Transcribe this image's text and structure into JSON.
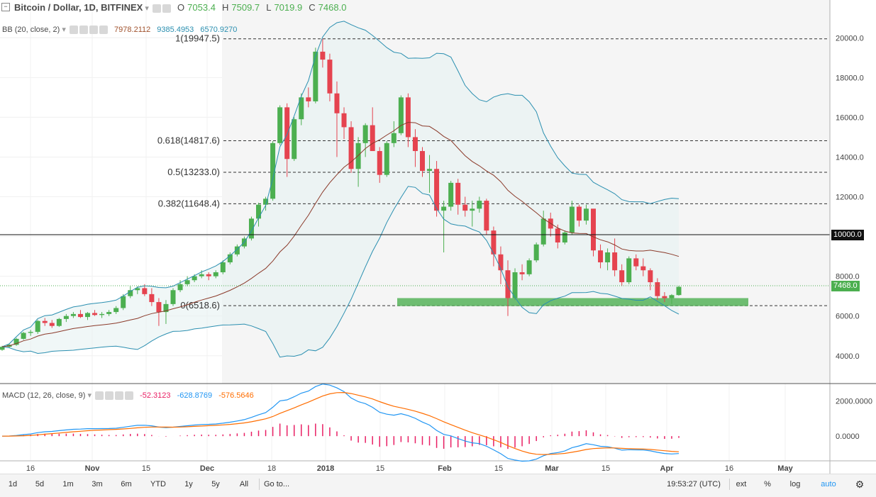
{
  "legend": {
    "symbol": "Bitcoin / Dollar, 1D, BITFINEX",
    "open_k": "O",
    "open": "7053.4",
    "high_k": "H",
    "high": "7509.7",
    "low_k": "L",
    "low": "7019.9",
    "close_k": "C",
    "close": "7468.0"
  },
  "bb": {
    "label": "BB (20, close, 2)",
    "basis": "7978.2112",
    "upper": "9385.4953",
    "lower": "6570.9270"
  },
  "macd": {
    "label": "MACD (12, 26, close, 9)",
    "hist": "-52.3123",
    "macd": "-628.8769",
    "signal": "-576.5646"
  },
  "price_axis": [
    "20000.0",
    "18000.0",
    "16000.0",
    "14000.0",
    "12000.0",
    "8000.0",
    "6000.0",
    "4000.0"
  ],
  "macd_axis": [
    "2000.0000",
    "0.0000"
  ],
  "level_10000": "10000.0",
  "last_price": "7468.0",
  "fib": [
    {
      "label": "1(19947.5)",
      "price": 19947.5
    },
    {
      "label": "0.618(14817.6)",
      "price": 14817.6
    },
    {
      "label": "0.5(13233.0)",
      "price": 13233.0
    },
    {
      "label": "0.382(11648.4)",
      "price": 11648.4
    },
    {
      "label": "0(6518.6)",
      "price": 6518.6
    }
  ],
  "time_axis": [
    "16",
    "Nov",
    "15",
    "Dec",
    "18",
    "2018",
    "15",
    "Feb",
    "15",
    "Mar",
    "15",
    "Apr",
    "16",
    "May"
  ],
  "toolbar": {
    "ranges": [
      "1d",
      "5d",
      "1m",
      "3m",
      "6m",
      "YTD",
      "1y",
      "5y",
      "All"
    ],
    "goto": "Go to...",
    "clock": "19:53:27 (UTC)",
    "ext": "ext",
    "pct": "%",
    "log": "log",
    "auto": "auto"
  },
  "colors": {
    "up": "#4caf50",
    "down": "#e5434f",
    "bb_band": "#2b8fb0",
    "bb_basis": "#8b3a2a",
    "support_zone": "#4caf50"
  },
  "chart_data": {
    "type": "candlestick",
    "title": "Bitcoin / Dollar, 1D, BITFINEX",
    "candles_ohlc": [
      [
        4300,
        4500,
        4250,
        4450
      ],
      [
        4450,
        4600,
        4400,
        4550
      ],
      [
        4550,
        4900,
        4500,
        4850
      ],
      [
        4850,
        5200,
        4800,
        5150
      ],
      [
        5150,
        5300,
        5000,
        5200
      ],
      [
        5200,
        5800,
        5100,
        5750
      ],
      [
        5750,
        5900,
        5500,
        5650
      ],
      [
        5650,
        5800,
        5400,
        5500
      ],
      [
        5500,
        5900,
        5450,
        5850
      ],
      [
        5850,
        6100,
        5700,
        6000
      ],
      [
        6000,
        6200,
        5900,
        6100
      ],
      [
        6100,
        6300,
        5900,
        5950
      ],
      [
        5950,
        6200,
        5800,
        6150
      ],
      [
        6150,
        6300,
        6000,
        6050
      ],
      [
        6050,
        6200,
        5900,
        6100
      ],
      [
        6100,
        6300,
        6000,
        6200
      ],
      [
        6200,
        6500,
        6100,
        6400
      ],
      [
        6400,
        7100,
        6300,
        7000
      ],
      [
        7000,
        7500,
        6900,
        7300
      ],
      [
        7300,
        7500,
        7100,
        7400
      ],
      [
        7400,
        7600,
        7000,
        7100
      ],
      [
        7100,
        7400,
        6500,
        6700
      ],
      [
        6700,
        6900,
        5500,
        6200
      ],
      [
        6200,
        6800,
        5600,
        6600
      ],
      [
        6600,
        7400,
        6500,
        7300
      ],
      [
        7300,
        7800,
        7200,
        7600
      ],
      [
        7600,
        8000,
        7500,
        7800
      ],
      [
        7800,
        8100,
        7700,
        8000
      ],
      [
        8000,
        8300,
        7900,
        8100
      ],
      [
        8100,
        8200,
        7800,
        8000
      ],
      [
        8000,
        8300,
        7900,
        8200
      ],
      [
        8200,
        8800,
        8100,
        8700
      ],
      [
        8700,
        9200,
        8600,
        9100
      ],
      [
        9100,
        9600,
        9000,
        9500
      ],
      [
        9500,
        10000,
        9400,
        9900
      ],
      [
        9900,
        11000,
        9800,
        10900
      ],
      [
        10900,
        11700,
        10500,
        11600
      ],
      [
        11600,
        12000,
        11300,
        11900
      ],
      [
        11900,
        14800,
        11800,
        14700
      ],
      [
        14700,
        16600,
        14600,
        16500
      ],
      [
        16500,
        16700,
        13000,
        13900
      ],
      [
        13900,
        16000,
        13800,
        15900
      ],
      [
        15900,
        17200,
        15600,
        17000
      ],
      [
        17000,
        17500,
        16500,
        16800
      ],
      [
        16800,
        19500,
        16700,
        19300
      ],
      [
        19300,
        19947,
        18500,
        18900
      ],
      [
        18900,
        19200,
        16800,
        17200
      ],
      [
        17200,
        17800,
        14000,
        16200
      ],
      [
        16200,
        16500,
        14900,
        15500
      ],
      [
        15500,
        15800,
        13200,
        13400
      ],
      [
        13400,
        15000,
        12500,
        14700
      ],
      [
        14700,
        15700,
        14000,
        15600
      ],
      [
        15600,
        16500,
        14900,
        14300
      ],
      [
        14300,
        14500,
        12700,
        13100
      ],
      [
        13100,
        14800,
        13000,
        14700
      ],
      [
        14700,
        15800,
        14500,
        15200
      ],
      [
        15200,
        17100,
        15100,
        17000
      ],
      [
        17000,
        17200,
        14500,
        15000
      ],
      [
        15000,
        15400,
        13500,
        14300
      ],
      [
        14300,
        14500,
        13000,
        13300
      ],
      [
        13300,
        14100,
        12200,
        13400
      ],
      [
        13400,
        13800,
        11000,
        11300
      ],
      [
        11300,
        11800,
        9200,
        11500
      ],
      [
        11500,
        12800,
        11300,
        12700
      ],
      [
        12700,
        12900,
        11100,
        11600
      ],
      [
        11600,
        12000,
        11000,
        11300
      ],
      [
        11300,
        11800,
        10500,
        11400
      ],
      [
        11400,
        12000,
        11200,
        11800
      ],
      [
        11800,
        11900,
        10100,
        10300
      ],
      [
        10300,
        10500,
        8500,
        9100
      ],
      [
        9100,
        9500,
        7600,
        8300
      ],
      [
        8300,
        8800,
        6000,
        6900
      ],
      [
        6900,
        8400,
        6800,
        8200
      ],
      [
        8200,
        8600,
        7800,
        8100
      ],
      [
        8100,
        8900,
        8000,
        8800
      ],
      [
        8800,
        9700,
        8700,
        9600
      ],
      [
        9600,
        11300,
        9500,
        10900
      ],
      [
        10900,
        11200,
        10000,
        10400
      ],
      [
        10400,
        10600,
        9400,
        9700
      ],
      [
        9700,
        10300,
        9600,
        10200
      ],
      [
        10200,
        11800,
        10100,
        11500
      ],
      [
        11500,
        11600,
        10500,
        10800
      ],
      [
        10800,
        11600,
        10600,
        11400
      ],
      [
        11400,
        11100,
        9000,
        9300
      ],
      [
        9300,
        9600,
        8400,
        8700
      ],
      [
        8700,
        9400,
        8300,
        9200
      ],
      [
        9200,
        9900,
        8000,
        8300
      ],
      [
        8300,
        8600,
        7500,
        7700
      ],
      [
        7700,
        9000,
        7600,
        8900
      ],
      [
        8900,
        9100,
        8300,
        8500
      ],
      [
        8500,
        8900,
        8000,
        8300
      ],
      [
        8300,
        8400,
        7300,
        7700
      ],
      [
        7700,
        7900,
        6800,
        7000
      ],
      [
        7000,
        7200,
        6700,
        6900
      ],
      [
        6900,
        7100,
        6600,
        7050
      ],
      [
        7053.4,
        7509.7,
        7019.9,
        7468.0
      ]
    ],
    "fib_levels": [
      19947.5,
      14817.6,
      13233.0,
      11648.4,
      6518.6
    ],
    "support_zone": [
      6500,
      6900
    ],
    "y_range": [
      2600,
      21900
    ],
    "macd_range": [
      -1400,
      2900
    ]
  }
}
